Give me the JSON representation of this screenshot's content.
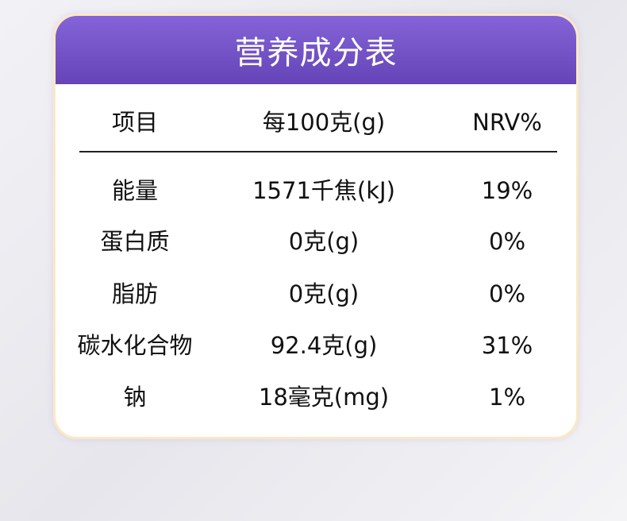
{
  "title": "营养成分表",
  "header": [
    "项目",
    "每100克(g)",
    "NRV%"
  ],
  "colors": {
    "header_top": "#8464d8",
    "header_bottom": "#6444b6",
    "border": "#fbe9c4"
  },
  "rows": [
    [
      "能量",
      "1571千焦(kJ)",
      "19%"
    ],
    [
      "蛋白质",
      "0克(g)",
      "0%"
    ],
    [
      "脂肪",
      "0克(g)",
      "0%"
    ],
    [
      "碳水化合物",
      "92.4克(g)",
      "31%"
    ],
    [
      "钠",
      "18毫克(mg)",
      "1%"
    ]
  ]
}
